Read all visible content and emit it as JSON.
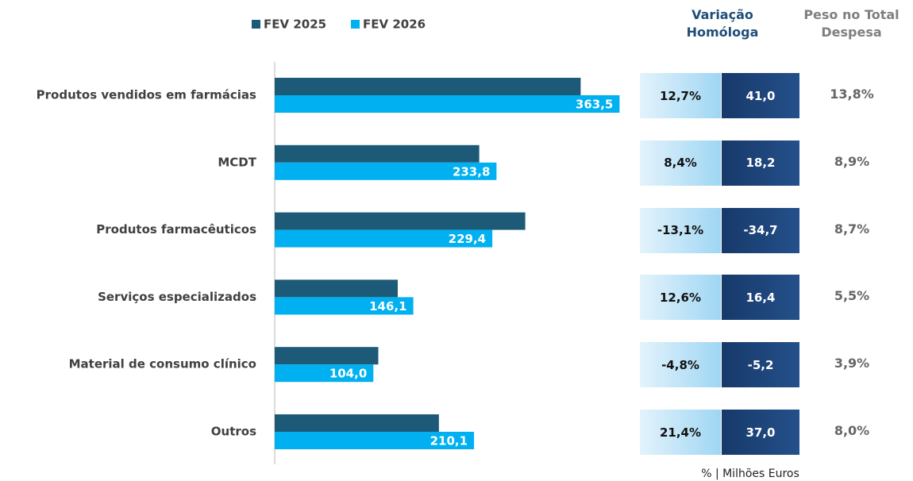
{
  "chart_data": {
    "type": "bar",
    "orientation": "horizontal",
    "categories": [
      "Produtos vendidos em farmácias",
      "MCDT",
      "Produtos farmacêuticos",
      "Serviços especializados",
      "Material de consumo clínico",
      "Outros"
    ],
    "series": [
      {
        "name": "FEV 2025",
        "color": "#1d5a78",
        "values": [
          322.5,
          215.6,
          264.1,
          129.7,
          109.2,
          173.1
        ]
      },
      {
        "name": "FEV 2026",
        "color": "#00b0f0",
        "values": [
          363.5,
          233.8,
          229.4,
          146.1,
          104.0,
          210.1
        ],
        "value_labels": [
          "363,5",
          "233,8",
          "229,4",
          "146,1",
          "104,0",
          "210,1"
        ]
      }
    ],
    "xlim": [
      0,
      400
    ],
    "legend": "top"
  },
  "table": {
    "headers": [
      "Variação Homóloga",
      "Peso no Total Despesa"
    ],
    "rows": [
      [
        "12,7%",
        "41,0",
        "13,8%"
      ],
      [
        "8,4%",
        "18,2",
        "8,9%"
      ],
      [
        "-13,1%",
        "-34,7",
        "8,7%"
      ],
      [
        "12,6%",
        "16,4",
        "5,5%"
      ],
      [
        "-4,8%",
        "-5,2",
        "3,9%"
      ],
      [
        "21,4%",
        "37,0",
        "8,0%"
      ]
    ]
  },
  "note": "% | Milhões Euros"
}
